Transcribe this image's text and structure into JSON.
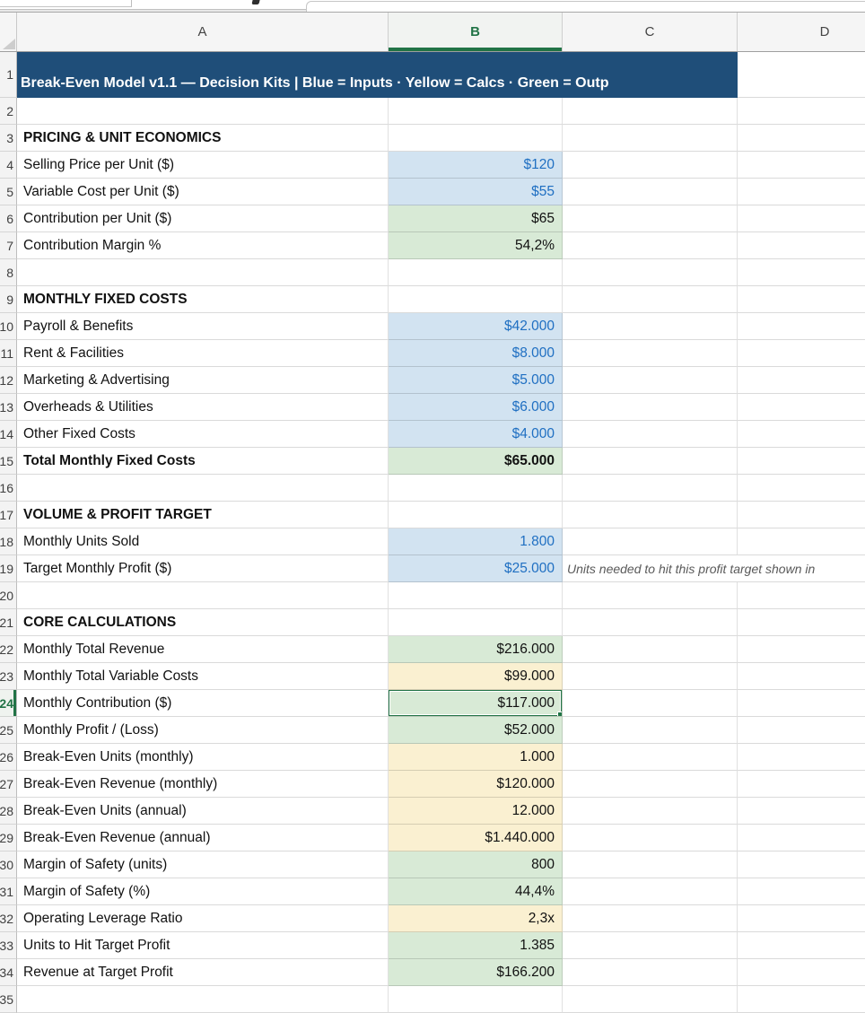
{
  "colors": {
    "banner_bg": "#1F4E79",
    "banner_text": "#FFFFFF",
    "input_fill": "#D2E3F1",
    "input_text": "#1F6FC2",
    "calc_fill": "#FAF0D1",
    "output_fill": "#D8EAD6",
    "selection_green": "#217346",
    "gridline": "#D9D9D9"
  },
  "sheet": {
    "column_headers": [
      "A",
      "B",
      "C",
      "D"
    ],
    "selected_column": "B",
    "selected_row": "24",
    "selected_cell_ref": "B24",
    "title_row": {
      "n": "1",
      "text": "Break-Even Model v1.1 — Decision Kits  |  Blue = Inputs  ·  Yellow = Calcs  ·  Green = Outp"
    },
    "rows": [
      {
        "n": "2",
        "label": "",
        "value": "",
        "fill": "none"
      },
      {
        "n": "3",
        "label": "PRICING & UNIT ECONOMICS",
        "bold": true,
        "value": "",
        "fill": "none"
      },
      {
        "n": "4",
        "label": "Selling Price per Unit ($)",
        "value": "$120",
        "fill": "input"
      },
      {
        "n": "5",
        "label": "Variable Cost per Unit ($)",
        "value": "$55",
        "fill": "input"
      },
      {
        "n": "6",
        "label": "Contribution per Unit ($)",
        "value": "$65",
        "fill": "output"
      },
      {
        "n": "7",
        "label": "Contribution Margin %",
        "value": "54,2%",
        "fill": "output"
      },
      {
        "n": "8",
        "label": "",
        "value": "",
        "fill": "none"
      },
      {
        "n": "9",
        "label": "MONTHLY FIXED COSTS",
        "bold": true,
        "value": "",
        "fill": "none"
      },
      {
        "n": "10",
        "label": "Payroll & Benefits",
        "value": "$42.000",
        "fill": "input"
      },
      {
        "n": "11",
        "label": "Rent & Facilities",
        "value": "$8.000",
        "fill": "input"
      },
      {
        "n": "12",
        "label": "Marketing & Advertising",
        "value": "$5.000",
        "fill": "input"
      },
      {
        "n": "13",
        "label": "Overheads & Utilities",
        "value": "$6.000",
        "fill": "input"
      },
      {
        "n": "14",
        "label": "Other Fixed Costs",
        "value": "$4.000",
        "fill": "input"
      },
      {
        "n": "15",
        "label": "Total Monthly Fixed Costs",
        "bold": true,
        "value": "$65.000",
        "value_bold": true,
        "fill": "output"
      },
      {
        "n": "16",
        "label": "",
        "value": "",
        "fill": "none"
      },
      {
        "n": "17",
        "label": "VOLUME & PROFIT TARGET",
        "bold": true,
        "value": "",
        "fill": "none"
      },
      {
        "n": "18",
        "label": "Monthly Units Sold",
        "value": "1.800",
        "fill": "input"
      },
      {
        "n": "19",
        "label": "Target Monthly Profit ($)",
        "value": "$25.000",
        "fill": "input",
        "note": "Units needed to hit this profit target shown in"
      },
      {
        "n": "20",
        "label": "",
        "value": "",
        "fill": "none"
      },
      {
        "n": "21",
        "label": "CORE CALCULATIONS",
        "bold": true,
        "value": "",
        "fill": "none"
      },
      {
        "n": "22",
        "label": "Monthly Total Revenue",
        "value": "$216.000",
        "fill": "output"
      },
      {
        "n": "23",
        "label": "Monthly Total Variable Costs",
        "value": "$99.000",
        "fill": "calc"
      },
      {
        "n": "24",
        "label": "Monthly Contribution ($)",
        "value": "$117.000",
        "fill": "output",
        "selected": true
      },
      {
        "n": "25",
        "label": "Monthly Profit / (Loss)",
        "value": "$52.000",
        "fill": "output"
      },
      {
        "n": "26",
        "label": "Break-Even Units (monthly)",
        "value": "1.000",
        "fill": "calc"
      },
      {
        "n": "27",
        "label": "Break-Even Revenue (monthly)",
        "value": "$120.000",
        "fill": "calc"
      },
      {
        "n": "28",
        "label": "Break-Even Units (annual)",
        "value": "12.000",
        "fill": "calc"
      },
      {
        "n": "29",
        "label": "Break-Even Revenue (annual)",
        "value": "$1.440.000",
        "fill": "calc"
      },
      {
        "n": "30",
        "label": "Margin of Safety (units)",
        "value": "800",
        "fill": "output"
      },
      {
        "n": "31",
        "label": "Margin of Safety (%)",
        "value": "44,4%",
        "fill": "output"
      },
      {
        "n": "32",
        "label": "Operating Leverage Ratio",
        "value": "2,3x",
        "fill": "calc"
      },
      {
        "n": "33",
        "label": "Units to Hit Target Profit",
        "value": "1.385",
        "fill": "output"
      },
      {
        "n": "34",
        "label": "Revenue at Target Profit",
        "value": "$166.200",
        "fill": "output"
      },
      {
        "n": "35",
        "label": "",
        "value": "",
        "fill": "none"
      }
    ]
  }
}
